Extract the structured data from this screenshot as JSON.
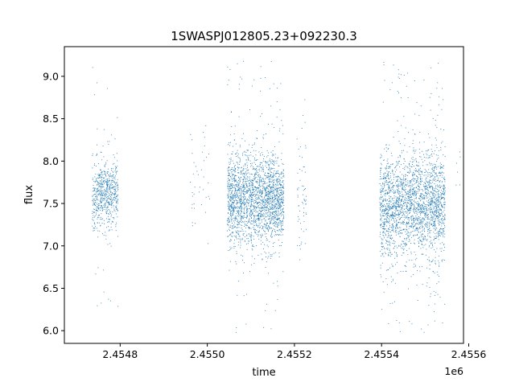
{
  "chart_data": {
    "type": "scatter",
    "title": "1SWASPJ012805.23+092230.3",
    "xlabel": "time",
    "ylabel": "flux",
    "x_offset_label": "1e6",
    "xlim": [
      2454672,
      2455588
    ],
    "ylim": [
      5.85,
      9.35
    ],
    "x_ticks": [
      2454800,
      2455000,
      2455200,
      2455400,
      2455600
    ],
    "x_tick_labels": [
      "2.4548",
      "2.4550",
      "2.4552",
      "2.4554",
      "2.4556"
    ],
    "y_ticks": [
      6.0,
      6.5,
      7.0,
      7.5,
      8.0,
      8.5,
      9.0
    ],
    "y_tick_labels": [
      "6.0",
      "6.5",
      "7.0",
      "7.5",
      "8.0",
      "8.5",
      "9.0"
    ],
    "grid": false,
    "point_color": "#1f77b4",
    "segments": [
      {
        "x_start": 2454735,
        "x_end": 2454795,
        "center": 7.6,
        "spread": 0.2,
        "min": 6.1,
        "max": 9.2,
        "density": 1.0
      },
      {
        "x_start": 2454960,
        "x_end": 2455005,
        "center": 7.7,
        "spread": 0.25,
        "min": 6.8,
        "max": 8.5,
        "density": 0.08
      },
      {
        "x_start": 2455045,
        "x_end": 2455175,
        "center": 7.55,
        "spread": 0.27,
        "min": 5.98,
        "max": 9.22,
        "density": 1.6
      },
      {
        "x_start": 2455205,
        "x_end": 2455228,
        "center": 7.6,
        "spread": 0.35,
        "min": 6.6,
        "max": 8.85,
        "density": 0.25
      },
      {
        "x_start": 2455395,
        "x_end": 2455545,
        "center": 7.5,
        "spread": 0.3,
        "min": 5.98,
        "max": 9.2,
        "density": 1.5
      },
      {
        "x_start": 2455570,
        "x_end": 2455580,
        "center": 7.7,
        "spread": 0.3,
        "min": 7.0,
        "max": 8.9,
        "density": 0.05
      }
    ]
  }
}
